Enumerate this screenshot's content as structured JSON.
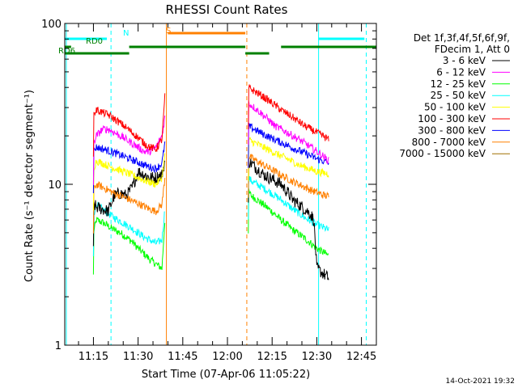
{
  "chart_data": {
    "type": "line",
    "title": "RHESSI Count Rates",
    "xlabel": "Start Time (07-Apr-06 11:05:22)",
    "ylabel": "Count Rate (s⁻¹ detector segment⁻¹)",
    "yscale": "log",
    "ylim": [
      1,
      100
    ],
    "xlim_minutes_after_11_00": [
      5.37,
      110
    ],
    "x_ticks": [
      "11:15",
      "11:30",
      "11:45",
      "12:00",
      "12:15",
      "12:30",
      "12:45"
    ],
    "x_tick_minutes_after_11_00": [
      15,
      30,
      45,
      60,
      75,
      90,
      105
    ],
    "y_ticks": [
      "1",
      "10",
      "100"
    ],
    "y_tick_values": [
      1,
      10,
      100
    ],
    "legend_header": [
      "Det 1f,3f,4f,5f,6f,9f,",
      "FDecim 1, Att 0"
    ],
    "legend_position": "right",
    "timestamp": "14-Oct-2021 19:32",
    "data_gaps_minutes_after_11_00": [
      [
        39,
        67
      ]
    ],
    "series": [
      {
        "name": "3 - 6 keV",
        "color": "#000000",
        "segments": [
          {
            "x": [
              15,
              16,
              18,
              20,
              22,
              24,
              26,
              28,
              30,
              32,
              34,
              36,
              38,
              39
            ],
            "y": [
              7.5,
              7.2,
              7.0,
              6.8,
              8.5,
              8.8,
              8.5,
              9.5,
              12.0,
              11.5,
              11.0,
              11.0,
              11.5,
              14.0
            ]
          },
          {
            "x": [
              67,
              68,
              70,
              72,
              74,
              76,
              78,
              80,
              82,
              84,
              86,
              88,
              89,
              90,
              92,
              94
            ],
            "y": [
              14.0,
              13.5,
              12.5,
              11.5,
              11.0,
              10.5,
              10.0,
              9.0,
              8.0,
              7.5,
              7.0,
              6.5,
              6.0,
              3.0,
              2.8,
              2.6
            ]
          }
        ]
      },
      {
        "name": "6 - 12 keV",
        "color": "#ff00ff",
        "segments": [
          {
            "x": [
              15,
              16,
              18,
              20,
              22,
              24,
              26,
              28,
              30,
              32,
              34,
              36,
              38,
              39
            ],
            "y": [
              18,
              20,
              22,
              22,
              21,
              20,
              19,
              18,
              17,
              16,
              16,
              17,
              20,
              26
            ]
          },
          {
            "x": [
              67,
              68,
              70,
              72,
              74,
              76,
              78,
              80,
              82,
              84,
              86,
              88,
              90,
              92,
              94
            ],
            "y": [
              32,
              31,
              29,
              27,
              25,
              23,
              22,
              21,
              20,
              19,
              18,
              17,
              16,
              15,
              14
            ]
          }
        ]
      },
      {
        "name": "12 - 25 keV",
        "color": "#00ff00",
        "segments": [
          {
            "x": [
              15,
              16,
              18,
              20,
              22,
              24,
              26,
              28,
              30,
              32,
              34,
              36,
              38,
              39
            ],
            "y": [
              5.0,
              6.0,
              5.8,
              5.5,
              5.2,
              5.0,
              4.7,
              4.4,
              4.0,
              3.7,
              3.4,
              3.2,
              3.0,
              6.0
            ]
          },
          {
            "x": [
              67,
              68,
              70,
              72,
              74,
              76,
              78,
              80,
              82,
              84,
              86,
              88,
              90,
              92,
              94
            ],
            "y": [
              9.0,
              8.5,
              8.0,
              7.5,
              7.0,
              6.5,
              6.0,
              5.6,
              5.2,
              4.9,
              4.6,
              4.3,
              4.0,
              3.8,
              3.6
            ]
          }
        ]
      },
      {
        "name": "25 - 50 keV",
        "color": "#00ffff",
        "segments": [
          {
            "x": [
              15,
              16,
              18,
              20,
              22,
              24,
              26,
              28,
              30,
              32,
              34,
              36,
              38,
              39
            ],
            "y": [
              6.5,
              7.5,
              7.0,
              6.6,
              6.2,
              5.9,
              5.6,
              5.3,
              5.0,
              4.7,
              4.5,
              4.3,
              4.5,
              7.0
            ]
          },
          {
            "x": [
              67,
              68,
              70,
              72,
              74,
              76,
              78,
              80,
              82,
              84,
              86,
              88,
              90,
              92,
              94
            ],
            "y": [
              11.0,
              10.5,
              10.0,
              9.5,
              9.0,
              8.5,
              8.0,
              7.5,
              7.0,
              6.6,
              6.2,
              5.9,
              5.6,
              5.4,
              5.2
            ]
          }
        ]
      },
      {
        "name": "50 - 100 keV",
        "color": "#ffff00",
        "segments": [
          {
            "x": [
              15,
              16,
              18,
              20,
              22,
              24,
              26,
              28,
              30,
              32,
              34,
              36,
              38,
              39
            ],
            "y": [
              12.5,
              14.0,
              13.5,
              13.0,
              12.6,
              12.2,
              11.8,
              11.4,
              11.0,
              10.6,
              10.3,
              10.0,
              11.0,
              15.0
            ]
          },
          {
            "x": [
              67,
              68,
              70,
              72,
              74,
              76,
              78,
              80,
              82,
              84,
              86,
              88,
              90,
              92,
              94
            ],
            "y": [
              19.0,
              18.5,
              17.8,
              17.0,
              16.3,
              15.6,
              15.0,
              14.4,
              13.8,
              13.2,
              12.8,
              12.4,
              12.0,
              11.8,
              11.6
            ]
          }
        ]
      },
      {
        "name": "100 - 300 keV",
        "color": "#ff0000",
        "segments": [
          {
            "x": [
              15,
              16,
              18,
              20,
              22,
              24,
              26,
              28,
              30,
              32,
              34,
              36,
              38,
              39
            ],
            "y": [
              27,
              29,
              28,
              27,
              25.5,
              24,
              22.5,
              21,
              19.5,
              18,
              17,
              16.5,
              19,
              35
            ]
          },
          {
            "x": [
              67,
              68,
              70,
              72,
              74,
              76,
              78,
              80,
              82,
              84,
              86,
              88,
              90,
              92,
              94
            ],
            "y": [
              40,
              39,
              37,
              35,
              33,
              31,
              29,
              27.5,
              26,
              24.5,
              23,
              22,
              21,
              20,
              19
            ]
          }
        ]
      },
      {
        "name": "300 - 800 keV",
        "color": "#0000ff",
        "segments": [
          {
            "x": [
              15,
              16,
              18,
              20,
              22,
              24,
              26,
              28,
              30,
              32,
              34,
              36,
              38,
              39
            ],
            "y": [
              16,
              17,
              16.6,
              16.2,
              15.7,
              15.2,
              14.7,
              14.2,
              13.7,
              13.2,
              12.8,
              12.5,
              13.5,
              18
            ]
          },
          {
            "x": [
              67,
              68,
              70,
              72,
              74,
              76,
              78,
              80,
              82,
              84,
              86,
              88,
              90,
              92,
              94
            ],
            "y": [
              23,
              22.5,
              21.5,
              20.5,
              19.7,
              18.9,
              18.2,
              17.5,
              16.8,
              16.2,
              15.6,
              15.0,
              14.4,
              14.0,
              13.6
            ]
          }
        ]
      },
      {
        "name": "800 - 7000 keV",
        "color": "#ff8000",
        "segments": [
          {
            "x": [
              15,
              16,
              18,
              20,
              22,
              24,
              26,
              28,
              30,
              32,
              34,
              36,
              38,
              39
            ],
            "y": [
              9.0,
              10.0,
              9.6,
              9.2,
              8.8,
              8.5,
              8.2,
              7.9,
              7.6,
              7.3,
              7.0,
              6.8,
              7.5,
              11.0
            ]
          },
          {
            "x": [
              67,
              68,
              70,
              72,
              74,
              76,
              78,
              80,
              82,
              84,
              86,
              88,
              90,
              92,
              94
            ],
            "y": [
              15.0,
              14.6,
              13.9,
              13.2,
              12.6,
              12.0,
              11.4,
              10.9,
              10.4,
              10.0,
              9.6,
              9.2,
              8.9,
              8.6,
              8.4
            ]
          }
        ]
      },
      {
        "name": "7000 - 15000 keV",
        "color": "#a07000",
        "segments": []
      }
    ],
    "attenuator_bars": [
      {
        "label": "N",
        "color": "#00ffff",
        "segments": [
          [
            5.37,
            19.5
          ],
          [
            90.5,
            106
          ]
        ]
      },
      {
        "label": "S",
        "color": "#ff8000",
        "segments": [
          [
            40,
            66
          ]
        ]
      },
      {
        "label": "RD0",
        "color": "#008000",
        "segments": [
          [
            5.37,
            7.5
          ],
          [
            27,
            66
          ],
          [
            78,
            110
          ]
        ]
      },
      {
        "label": "RD6",
        "color": "#008000",
        "segments": [
          [
            5.37,
            27
          ],
          [
            66,
            74
          ]
        ]
      }
    ],
    "vertical_markers": [
      {
        "x": 5.9,
        "color": "#00ffff",
        "style": "solid"
      },
      {
        "x": 20.9,
        "color": "#00ffff",
        "style": "dashed"
      },
      {
        "x": 39.5,
        "color": "#ff8000",
        "style": "solid"
      },
      {
        "x": 66.5,
        "color": "#ff8000",
        "style": "dashed"
      },
      {
        "x": 90.6,
        "color": "#00ffff",
        "style": "solid"
      },
      {
        "x": 106.6,
        "color": "#00ffff",
        "style": "dashed"
      }
    ]
  }
}
